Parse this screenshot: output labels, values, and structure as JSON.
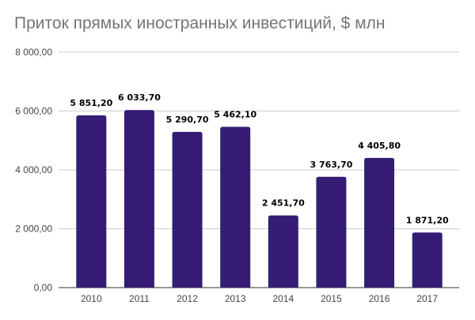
{
  "chart_data": {
    "type": "bar",
    "title": "Приток прямых иностранных инвестиций, $ млн",
    "categories": [
      "2010",
      "2011",
      "2012",
      "2013",
      "2014",
      "2015",
      "2016",
      "2017"
    ],
    "values": [
      5851.2,
      6033.7,
      5290.7,
      5462.1,
      2451.7,
      3763.7,
      4405.8,
      1871.2
    ],
    "data_labels": [
      "5 851,20",
      "6 033,70",
      "5 290,70",
      "5 462,10",
      "2 451,70",
      "3 763,70",
      "4 405,80",
      "1 871,20"
    ],
    "yticks": [
      0,
      2000,
      4000,
      6000,
      8000
    ],
    "ytick_labels": [
      "0,00",
      "2 000,00",
      "4 000,00",
      "6 000,00",
      "8 000,00"
    ],
    "ylim": [
      0,
      8000
    ],
    "xlabel": "",
    "ylabel": "",
    "grid": true,
    "legend": "none",
    "bar_color": "#351c75"
  }
}
